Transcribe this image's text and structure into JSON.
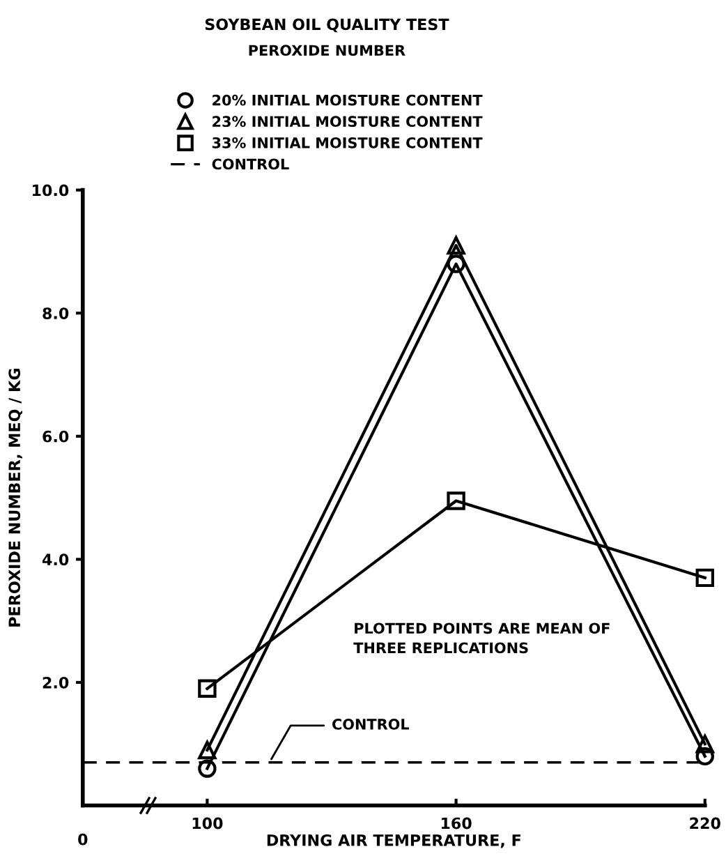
{
  "chart_data": {
    "type": "line",
    "title": "SOYBEAN OIL QUALITY TEST",
    "subtitle": "PEROXIDE NUMBER",
    "xlabel": "DRYING AIR TEMPERATURE, F",
    "ylabel": "PEROXIDE NUMBER, MEQ / KG",
    "x": [
      100,
      160,
      220
    ],
    "series": [
      {
        "name": "20% INITIAL MOISTURE CONTENT",
        "color": "#000000",
        "marker": "circle",
        "values": [
          0.6,
          8.8,
          0.8
        ]
      },
      {
        "name": "23% INITIAL MOISTURE CONTENT",
        "color": "#000000",
        "marker": "triangle",
        "values": [
          0.9,
          9.1,
          1.0
        ]
      },
      {
        "name": "33% INITIAL MOISTURE CONTENT",
        "color": "#000000",
        "marker": "square",
        "values": [
          1.9,
          4.95,
          3.7
        ]
      }
    ],
    "ref_lines": [
      {
        "axis": "y",
        "value": 0.7,
        "label": "CONTROL",
        "color": "#000000",
        "line_style": "dashed"
      }
    ],
    "annotations": [
      "PLOTTED POINTS ARE MEAN OF THREE REPLICATIONS",
      "0"
    ],
    "xlim": [
      70,
      220
    ],
    "xticks": [
      100,
      160,
      220
    ],
    "ylim": [
      0,
      10
    ],
    "yticks": [
      {
        "value": 2,
        "label": "2.0"
      },
      {
        "value": 4,
        "label": "4.0"
      },
      {
        "value": 6,
        "label": "6.0"
      },
      {
        "value": 8,
        "label": "8.0"
      },
      {
        "value": 10,
        "label": "10.0"
      }
    ],
    "grid": false,
    "legend": "top",
    "line_style": "solid"
  }
}
